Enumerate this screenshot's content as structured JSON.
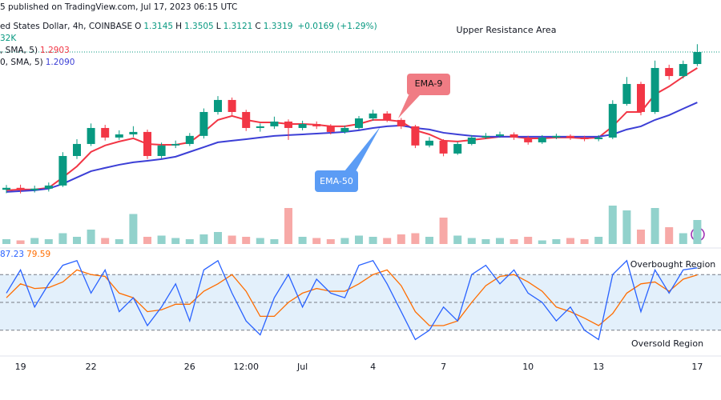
{
  "chart_data": [
    {
      "type": "candlestick",
      "published": "5 published on TradingView.com, Jul 17, 2023 06:15 UTC",
      "symbol": "ed States Dollar, 4h, COINBASE",
      "ohlc": [
        {
          "label": "O",
          "value": 1.3145
        },
        {
          "label": "H",
          "value": 1.3505
        },
        {
          "label": "L",
          "value": 1.3121
        },
        {
          "label": "C",
          "value": 1.3319
        }
      ],
      "change": "+0.0169 (+1.29%)",
      "indicators": [
        {
          "name": ", SMA, 5)",
          "value": 1.2903,
          "color": "#f23645"
        },
        {
          "name": "0, SMA, 5)",
          "value": {
            "value": 1.209,
            "label": "1.2090"
          },
          "color": "#3c3fd6"
        }
      ],
      "annotations": [
        "Upper Resistance Area"
      ],
      "categories": [
        null,
        "19",
        null,
        null,
        null,
        null,
        "22",
        null,
        null,
        null,
        null,
        null,
        null,
        "26",
        null,
        null,
        null,
        "12:00",
        null,
        null,
        null,
        "Jul",
        null,
        null,
        null,
        null,
        "4",
        null,
        null,
        null,
        null,
        "7",
        null,
        null,
        null,
        null,
        null,
        "10",
        null,
        null,
        null,
        null,
        "13",
        null,
        null,
        null,
        null,
        null,
        null,
        "17"
      ],
      "open": [
        1.2375,
        1.2389,
        1.2371,
        1.2383,
        1.2406,
        1.2622,
        1.271,
        1.2827,
        1.2757,
        1.278,
        1.2798,
        1.2622,
        1.2699,
        1.271,
        1.2769,
        1.2944,
        1.3032,
        1.2944,
        1.2827,
        1.2839,
        1.2874,
        1.2827,
        1.2856,
        1.2839,
        1.2798,
        1.2827,
        1.2897,
        1.2933,
        1.2886,
        1.2839,
        1.2699,
        1.2734,
        1.264,
        1.271,
        1.2757,
        1.2769,
        1.278,
        1.2757,
        1.2722,
        1.2757,
        1.2769,
        1.2757,
        1.2745,
        1.2757,
        1.3003,
        1.3149,
        1.2944,
        1.3266,
        1.3207,
        1.3295
      ],
      "high": [
        1.241,
        1.2412,
        1.2405,
        1.2428,
        1.265,
        1.2745,
        1.286,
        1.285,
        1.281,
        1.284,
        1.2815,
        1.272,
        1.2735,
        1.279,
        1.297,
        1.306,
        1.305,
        1.296,
        1.286,
        1.291,
        1.289,
        1.288,
        1.2875,
        1.2855,
        1.2845,
        1.2915,
        1.296,
        1.295,
        1.29,
        1.285,
        1.276,
        1.2745,
        1.2725,
        1.2775,
        1.279,
        1.28,
        1.2795,
        1.277,
        1.2775,
        1.2785,
        1.278,
        1.277,
        1.2775,
        1.303,
        1.32,
        1.3165,
        1.332,
        1.329,
        1.332,
        1.344
      ],
      "low": [
        1.235,
        1.2348,
        1.2355,
        1.2362,
        1.2395,
        1.26,
        1.2695,
        1.2735,
        1.274,
        1.276,
        1.26,
        1.2605,
        1.268,
        1.2695,
        1.275,
        1.2925,
        1.292,
        1.2805,
        1.28,
        1.282,
        1.274,
        1.281,
        1.282,
        1.278,
        1.2785,
        1.2815,
        1.288,
        1.287,
        1.282,
        1.268,
        1.2685,
        1.262,
        1.263,
        1.27,
        1.2745,
        1.2755,
        1.274,
        1.2705,
        1.271,
        1.2745,
        1.274,
        1.273,
        1.273,
        1.2745,
        1.299,
        1.292,
        1.293,
        1.318,
        1.319,
        1.328
      ],
      "close": [
        1.2389,
        1.2371,
        1.2383,
        1.2406,
        1.2622,
        1.271,
        1.2827,
        1.2757,
        1.278,
        1.2798,
        1.2622,
        1.2699,
        1.271,
        1.2769,
        1.2944,
        1.3032,
        1.2944,
        1.2827,
        1.2839,
        1.2874,
        1.2827,
        1.2856,
        1.2839,
        1.2798,
        1.2827,
        1.2897,
        1.2933,
        1.2886,
        1.2839,
        1.2699,
        1.2734,
        1.264,
        1.271,
        1.2757,
        1.2769,
        1.278,
        1.2757,
        1.2722,
        1.2757,
        1.2769,
        1.2757,
        1.2745,
        1.2757,
        1.3003,
        1.3149,
        1.2944,
        1.3266,
        1.3207,
        1.3295,
        1.3383
      ],
      "up_color": "#089981",
      "down_color": "#f23645",
      "series": [
        {
          "name": "EMA-9",
          "color": "#f23645",
          "values": [
            1.2371,
            1.2377,
            1.2377,
            1.2389,
            1.2465,
            1.2546,
            1.2652,
            1.2699,
            1.2728,
            1.2751,
            1.271,
            1.2704,
            1.2704,
            1.2722,
            1.2798,
            1.2886,
            1.2915,
            1.2886,
            1.2868,
            1.2868,
            1.2856,
            1.2856,
            1.2851,
            1.2839,
            1.2839,
            1.2856,
            1.2886,
            1.2886,
            1.2874,
            1.281,
            1.278,
            1.2734,
            1.2728,
            1.2739,
            1.2751,
            1.2763,
            1.2763,
            1.2751,
            1.2751,
            1.2757,
            1.2757,
            1.2751,
            1.2757,
            1.2839,
            1.2944,
            1.2944,
            1.3073,
            1.3131,
            1.3202,
            1.3266
          ]
        },
        {
          "name": "EMA-50",
          "color": "#3c3fd6",
          "values": [
            1.2359,
            1.2365,
            1.2371,
            1.2383,
            1.2418,
            1.2465,
            1.2511,
            1.2535,
            1.2558,
            1.2576,
            1.2587,
            1.2599,
            1.2617,
            1.2652,
            1.2687,
            1.2722,
            1.2734,
            1.2745,
            1.2757,
            1.2769,
            1.2775,
            1.278,
            1.2786,
            1.2792,
            1.2798,
            1.281,
            1.2827,
            1.2839,
            1.2845,
            1.2827,
            1.2816,
            1.2792,
            1.278,
            1.2769,
            1.2763,
            1.2763,
            1.2763,
            1.2763,
            1.2763,
            1.2763,
            1.2763,
            1.2763,
            1.2763,
            1.278,
            1.2816,
            1.2839,
            1.2886,
            1.2921,
            1.2968,
            1.3014
          ]
        }
      ],
      "ylim": [
        1.23,
        1.35
      ]
    },
    {
      "type": "bar",
      "label": "32K",
      "values": [
        4,
        3,
        5,
        4,
        9,
        6,
        12,
        5,
        4,
        25,
        6,
        7,
        5,
        4,
        8,
        10,
        7,
        6,
        5,
        4,
        30,
        6,
        5,
        4,
        5,
        7,
        6,
        5,
        8,
        9,
        6,
        22,
        7,
        5,
        4,
        5,
        4,
        6,
        3,
        4,
        5,
        4,
        6,
        32,
        28,
        12,
        30,
        14,
        9,
        20
      ],
      "up_color": "#92d2cc",
      "down_color": "#f7a9a7",
      "ylim": [
        0,
        50
      ]
    },
    {
      "type": "line",
      "series": [
        {
          "color": "#2962ff",
          "values": [
            60,
            85,
            45,
            70,
            90,
            95,
            60,
            85,
            40,
            55,
            25,
            45,
            70,
            30,
            85,
            95,
            60,
            30,
            15,
            55,
            80,
            45,
            75,
            60,
            55,
            90,
            95,
            70,
            40,
            10,
            20,
            45,
            30,
            80,
            90,
            70,
            85,
            60,
            50,
            30,
            45,
            20,
            10,
            80,
            95,
            40,
            85,
            60,
            85,
            87.23
          ]
        },
        {
          "color": "#ff6d00",
          "values": [
            55,
            70,
            65,
            66,
            72,
            85,
            80,
            78,
            60,
            55,
            40,
            42,
            48,
            48,
            62,
            70,
            80,
            62,
            35,
            35,
            50,
            60,
            65,
            62,
            62,
            70,
            80,
            85,
            68,
            40,
            25,
            25,
            30,
            50,
            68,
            78,
            80,
            72,
            62,
            45,
            40,
            33,
            25,
            38,
            60,
            70,
            72,
            62,
            75,
            79.59
          ]
        }
      ],
      "band_labels": [
        "Overbought Region",
        "Oversold Region"
      ],
      "ylim": [
        0,
        100
      ],
      "yticks": [
        20,
        50,
        80
      ],
      "band_color": "#e3f0fb"
    }
  ]
}
